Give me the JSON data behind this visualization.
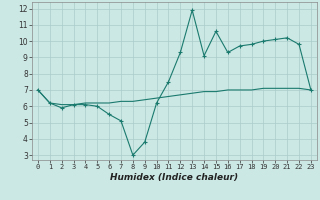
{
  "title": "",
  "xlabel": "Humidex (Indice chaleur)",
  "ylabel": "",
  "background_color": "#cce8e4",
  "line_color": "#1a7a6e",
  "grid_color": "#aaccca",
  "xlim": [
    -0.5,
    23.5
  ],
  "ylim": [
    2.7,
    12.4
  ],
  "xticks": [
    0,
    1,
    2,
    3,
    4,
    5,
    6,
    7,
    8,
    9,
    10,
    11,
    12,
    13,
    14,
    15,
    16,
    17,
    18,
    19,
    20,
    21,
    22,
    23
  ],
  "yticks": [
    3,
    4,
    5,
    6,
    7,
    8,
    9,
    10,
    11,
    12
  ],
  "series1_x": [
    0,
    1,
    2,
    3,
    4,
    5,
    6,
    7,
    8,
    9,
    10,
    11,
    12,
    13,
    14,
    15,
    16,
    17,
    18,
    19,
    20,
    21,
    22,
    23
  ],
  "series1_y": [
    7.0,
    6.2,
    5.9,
    6.1,
    6.1,
    6.0,
    5.5,
    5.1,
    3.0,
    3.8,
    6.2,
    7.5,
    9.3,
    11.9,
    9.1,
    10.6,
    9.3,
    9.7,
    9.8,
    10.0,
    10.1,
    10.2,
    9.8,
    7.0
  ],
  "series2_x": [
    0,
    1,
    2,
    3,
    4,
    5,
    6,
    7,
    8,
    9,
    10,
    11,
    12,
    13,
    14,
    15,
    16,
    17,
    18,
    19,
    20,
    21,
    22,
    23
  ],
  "series2_y": [
    7.0,
    6.2,
    6.1,
    6.1,
    6.2,
    6.2,
    6.2,
    6.3,
    6.3,
    6.4,
    6.5,
    6.6,
    6.7,
    6.8,
    6.9,
    6.9,
    7.0,
    7.0,
    7.0,
    7.1,
    7.1,
    7.1,
    7.1,
    7.0
  ]
}
